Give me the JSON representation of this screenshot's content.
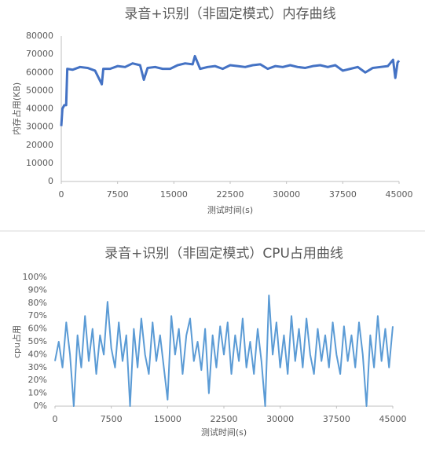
{
  "chart_data": [
    {
      "type": "line",
      "title": "录音+识别（非固定模式）内存曲线",
      "x_label": "测试时间(s)",
      "y_label": "内存占用(KB)",
      "x": [
        0,
        150,
        400,
        650,
        800,
        1500,
        2500,
        3500,
        4500,
        5400,
        5600,
        6500,
        7500,
        8500,
        9500,
        10500,
        11000,
        11500,
        12500,
        13500,
        14500,
        15500,
        16500,
        17500,
        17800,
        18500,
        19500,
        20500,
        21500,
        22500,
        23500,
        24500,
        25500,
        26500,
        27500,
        28500,
        29500,
        30500,
        31500,
        32500,
        33500,
        34500,
        35500,
        36500,
        37500,
        38500,
        39500,
        40500,
        41500,
        42500,
        43500,
        44200,
        44500,
        44800,
        45000
      ],
      "series": [
        {
          "name": "内存",
          "color": "#4472c4",
          "values": [
            30500,
            40000,
            42000,
            42000,
            62000,
            61500,
            63000,
            62500,
            61000,
            53500,
            62000,
            62000,
            63500,
            63000,
            65000,
            64000,
            56000,
            62500,
            63000,
            62000,
            62000,
            64000,
            65000,
            64500,
            69000,
            62000,
            63000,
            63500,
            62000,
            64000,
            63500,
            63000,
            64000,
            64500,
            62000,
            63500,
            63000,
            64000,
            63000,
            62500,
            63500,
            64000,
            63000,
            64000,
            61000,
            62000,
            63000,
            60000,
            62500,
            63000,
            63500,
            67000,
            57000,
            65500,
            66500
          ]
        }
      ],
      "xlim": [
        0,
        45000
      ],
      "xticks": [
        0,
        7500,
        15000,
        22500,
        30000,
        37500,
        45000
      ],
      "ylim": [
        0,
        80000
      ],
      "yticks": [
        0,
        10000,
        20000,
        30000,
        40000,
        50000,
        60000,
        70000,
        80000
      ],
      "grid": false
    },
    {
      "type": "line",
      "title": "录音+识别（非固定模式）CPU占用曲线",
      "x_label": "测试时间(s)",
      "y_label": "cpu占用",
      "x": [
        0,
        500,
        1000,
        1500,
        2000,
        2500,
        3000,
        3500,
        4000,
        4500,
        5000,
        5500,
        6000,
        6500,
        7000,
        7500,
        8000,
        8500,
        9000,
        9500,
        10000,
        10500,
        11000,
        11500,
        12000,
        12500,
        13000,
        13500,
        14000,
        14500,
        15000,
        15500,
        16000,
        16500,
        17000,
        17500,
        18000,
        18500,
        19000,
        19500,
        20000,
        20500,
        21000,
        21500,
        22000,
        22500,
        23000,
        23500,
        24000,
        24500,
        25000,
        25500,
        26000,
        26500,
        27000,
        27500,
        28000,
        28500,
        29000,
        29500,
        30000,
        30500,
        31000,
        31500,
        32000,
        32500,
        33000,
        33500,
        34000,
        34500,
        35000,
        35500,
        36000,
        36500,
        37000,
        37500,
        38000,
        38500,
        39000,
        39500,
        40000,
        40500,
        41000,
        41500,
        42000,
        42500,
        43000,
        43500,
        44000,
        44500,
        45000
      ],
      "series": [
        {
          "name": "cpu",
          "color": "#5b9bd5",
          "values": [
            35,
            50,
            30,
            65,
            40,
            0,
            55,
            30,
            70,
            35,
            60,
            25,
            55,
            40,
            81,
            45,
            30,
            65,
            35,
            55,
            0,
            60,
            30,
            68,
            40,
            25,
            65,
            35,
            55,
            30,
            5,
            70,
            40,
            60,
            25,
            55,
            68,
            35,
            50,
            28,
            60,
            10,
            55,
            30,
            62,
            40,
            65,
            25,
            55,
            35,
            68,
            30,
            50,
            25,
            60,
            35,
            0,
            86,
            40,
            65,
            30,
            55,
            25,
            70,
            35,
            60,
            30,
            68,
            40,
            25,
            60,
            35,
            55,
            30,
            65,
            40,
            25,
            62,
            35,
            55,
            30,
            65,
            40,
            0,
            55,
            30,
            70,
            35,
            60,
            30,
            62
          ]
        }
      ],
      "xlim": [
        0,
        45000
      ],
      "xticks": [
        0,
        7500,
        15000,
        22500,
        30000,
        37500,
        45000
      ],
      "ylim": [
        0,
        100
      ],
      "yticks": [
        {
          "value": 0,
          "label": "0%"
        },
        {
          "value": 10,
          "label": "10%"
        },
        {
          "value": 20,
          "label": "20%"
        },
        {
          "value": 30,
          "label": "30%"
        },
        {
          "value": 40,
          "label": "40%"
        },
        {
          "value": 50,
          "label": "50%"
        },
        {
          "value": 60,
          "label": "60%"
        },
        {
          "value": 70,
          "label": "70%"
        },
        {
          "value": 80,
          "label": "80%"
        },
        {
          "value": 90,
          "label": "90%"
        },
        {
          "value": 100,
          "label": "100%"
        }
      ],
      "grid": false
    }
  ]
}
